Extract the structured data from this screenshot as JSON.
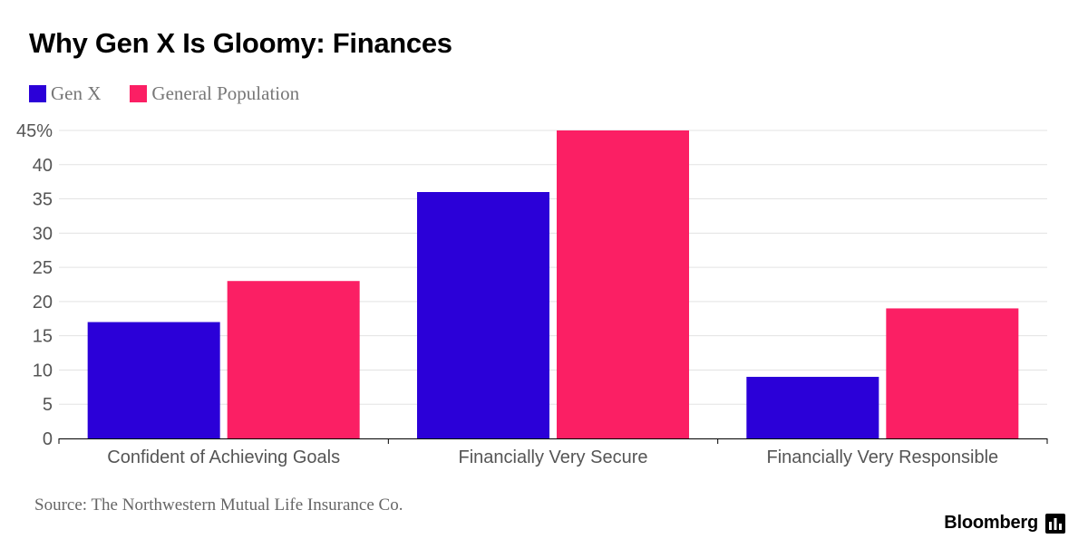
{
  "chart_data": {
    "type": "bar",
    "title": "Why Gen X Is Gloomy: Finances",
    "categories": [
      "Confident of Achieving Goals",
      "Financially Very Secure",
      "Financially Very Responsible"
    ],
    "series": [
      {
        "name": "Gen X",
        "color": "#2b00d8",
        "values": [
          17,
          36,
          9
        ]
      },
      {
        "name": "General Population",
        "color": "#fb1f64",
        "values": [
          23,
          45,
          19
        ]
      }
    ],
    "ylim": [
      0,
      45
    ],
    "yticks": [
      0,
      5,
      10,
      15,
      20,
      25,
      30,
      35,
      40,
      45
    ],
    "ytick_labels": [
      "0",
      "5",
      "10",
      "15",
      "20",
      "25",
      "30",
      "35",
      "40",
      "45%"
    ],
    "xlabel": "",
    "ylabel": "",
    "grid": true,
    "legend_position": "top-left"
  },
  "source": "Source: The Northwestern Mutual Life Insurance Co.",
  "brand": {
    "name": "Bloomberg",
    "icon": "bar-chart-icon"
  }
}
